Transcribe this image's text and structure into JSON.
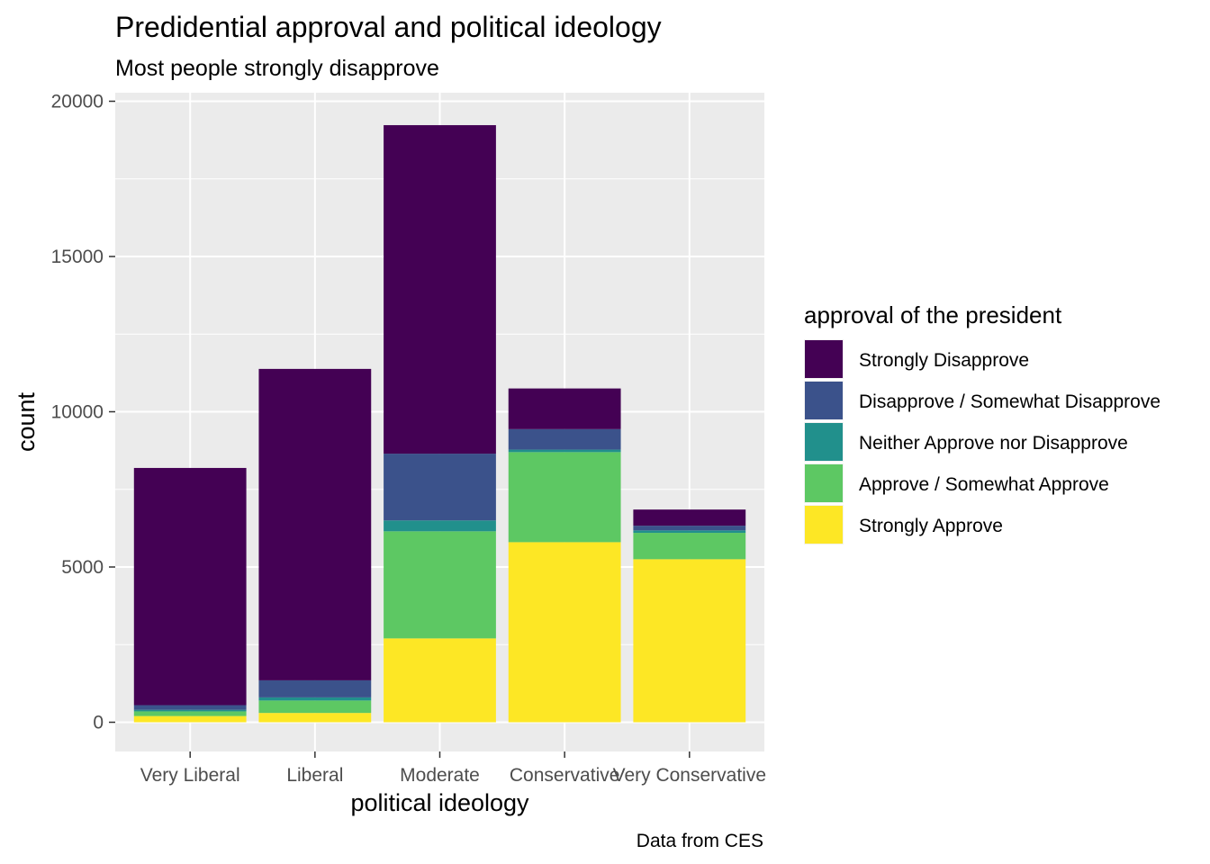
{
  "chart_data": {
    "type": "bar",
    "stacked": true,
    "title": "Predidential approval and political ideology",
    "subtitle": "Most people strongly disapprove",
    "xlabel": "political ideology",
    "ylabel": "count",
    "caption": "Data from CES",
    "categories": [
      "Very Liberal",
      "Liberal",
      "Moderate",
      "Conservative",
      "Very Conservative"
    ],
    "ylim": [
      0,
      20000
    ],
    "yticks": [
      0,
      5000,
      10000,
      15000,
      20000
    ],
    "grid": true,
    "legend": {
      "title": "approval of the president",
      "position": "right"
    },
    "series": [
      {
        "name": "Strongly Approve",
        "color": "#FDE725",
        "values": [
          200,
          300,
          2700,
          5800,
          5250
        ]
      },
      {
        "name": "Approve / Somewhat Approve",
        "color": "#5DC863",
        "values": [
          150,
          400,
          3450,
          2900,
          850
        ]
      },
      {
        "name": "Neither Approve nor Disapprove",
        "color": "#21908C",
        "values": [
          50,
          100,
          350,
          80,
          80
        ]
      },
      {
        "name": "Disapprove / Somewhat Disapprove",
        "color": "#3B528B",
        "values": [
          150,
          550,
          2150,
          660,
          150
        ]
      },
      {
        "name": "Strongly Disapprove",
        "color": "#440154",
        "values": [
          7640,
          10030,
          10580,
          1310,
          520
        ]
      }
    ],
    "legend_order": [
      "Strongly Disapprove",
      "Disapprove / Somewhat Disapprove",
      "Neither Approve nor Disapprove",
      "Approve / Somewhat Approve",
      "Strongly Approve"
    ]
  }
}
